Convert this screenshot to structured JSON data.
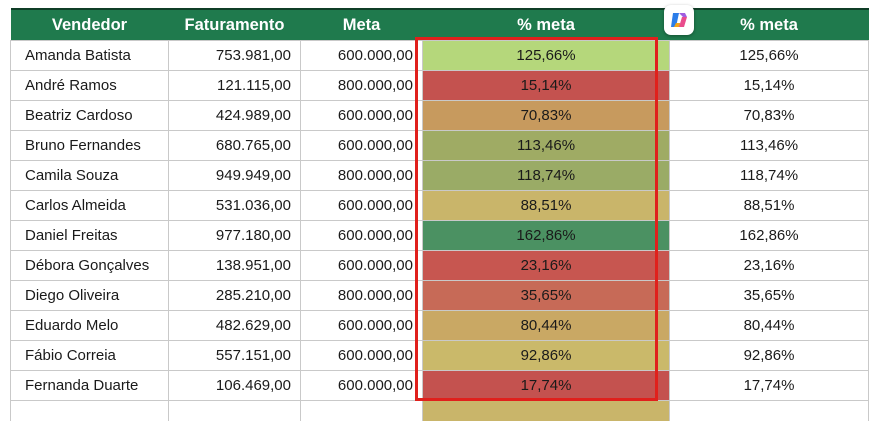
{
  "header": {
    "vendedor": "Vendedor",
    "faturamento": "Faturamento",
    "meta": "Meta",
    "pct_meta": "% meta",
    "pct_meta2": "% meta"
  },
  "copilot_icon": "copilot-icon",
  "colors": {
    "header_bg": "#1f7a4d",
    "selection_border": "#e0201c",
    "scale_low": "#c95350",
    "scale_mid": "#c9b76a",
    "scale_high": "#4a9162"
  },
  "rows": [
    {
      "vendedor": "Amanda Batista",
      "faturamento": "753.981,00",
      "meta": "600.000,00",
      "pct": "125,66%",
      "pct2": "125,66%",
      "color": "#b5d77b"
    },
    {
      "vendedor": "André Ramos",
      "faturamento": "121.115,00",
      "meta": "800.000,00",
      "pct": "15,14%",
      "pct2": "15,14%",
      "color": "#c4524f"
    },
    {
      "vendedor": "Beatriz Cardoso",
      "faturamento": "424.989,00",
      "meta": "600.000,00",
      "pct": "70,83%",
      "pct2": "70,83%",
      "color": "#c79a5e"
    },
    {
      "vendedor": "Bruno Fernandes",
      "faturamento": "680.765,00",
      "meta": "600.000,00",
      "pct": "113,46%",
      "pct2": "113,46%",
      "color": "#9fab64"
    },
    {
      "vendedor": "Camila Souza",
      "faturamento": "949.949,00",
      "meta": "800.000,00",
      "pct": "118,74%",
      "pct2": "118,74%",
      "color": "#9aab66"
    },
    {
      "vendedor": "Carlos Almeida",
      "faturamento": "531.036,00",
      "meta": "600.000,00",
      "pct": "88,51%",
      "pct2": "88,51%",
      "color": "#c9b56a"
    },
    {
      "vendedor": "Daniel Freitas",
      "faturamento": "977.180,00",
      "meta": "600.000,00",
      "pct": "162,86%",
      "pct2": "162,86%",
      "color": "#4b9162"
    },
    {
      "vendedor": "Débora Gonçalves",
      "faturamento": "138.951,00",
      "meta": "600.000,00",
      "pct": "23,16%",
      "pct2": "23,16%",
      "color": "#c75650"
    },
    {
      "vendedor": "Diego Oliveira",
      "faturamento": "285.210,00",
      "meta": "800.000,00",
      "pct": "35,65%",
      "pct2": "35,65%",
      "color": "#c76a57"
    },
    {
      "vendedor": "Eduardo Melo",
      "faturamento": "482.629,00",
      "meta": "600.000,00",
      "pct": "80,44%",
      "pct2": "80,44%",
      "color": "#c9a864"
    },
    {
      "vendedor": "Fábio Correia",
      "faturamento": "557.151,00",
      "meta": "600.000,00",
      "pct": "92,86%",
      "pct2": "92,86%",
      "color": "#cab96a"
    },
    {
      "vendedor": "Fernanda Duarte",
      "faturamento": "106.469,00",
      "meta": "600.000,00",
      "pct": "17,74%",
      "pct2": "17,74%",
      "color": "#c4524f"
    },
    {
      "vendedor": "",
      "faturamento": "",
      "meta": "",
      "pct": "",
      "pct2": "",
      "color": "#c9b56a"
    }
  ]
}
